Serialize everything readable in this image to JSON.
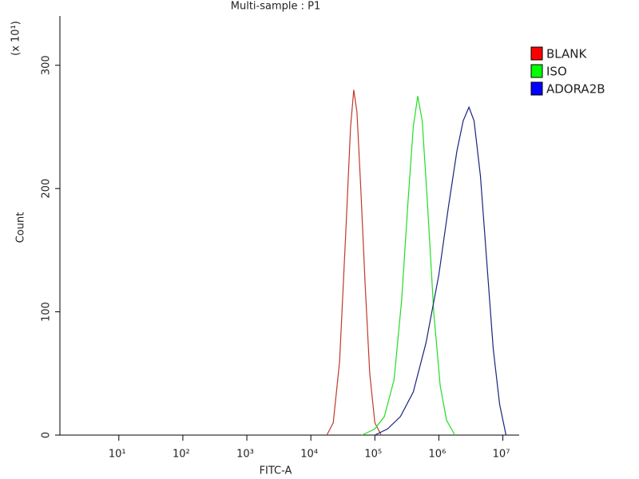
{
  "chart_data": {
    "type": "line",
    "title": "Multi-sample : P1",
    "x_label": "FITC-A",
    "y_label": "Count",
    "y_multiplier": "(x 10¹)",
    "xscale": "log",
    "xlim": [
      1.2,
      18000000
    ],
    "ylim": [
      0,
      340
    ],
    "xticks": [
      {
        "value": 10,
        "label": "10¹"
      },
      {
        "value": 100,
        "label": "10²"
      },
      {
        "value": 1000,
        "label": "10³"
      },
      {
        "value": 10000,
        "label": "10⁴"
      },
      {
        "value": 100000,
        "label": "10⁵"
      },
      {
        "value": 1000000,
        "label": "10⁶"
      },
      {
        "value": 10000000,
        "label": "10⁷"
      }
    ],
    "yticks": [
      0,
      100,
      200,
      300
    ],
    "legend": "right",
    "series": [
      {
        "name": "BLANK",
        "color": "#c0392b",
        "legend_color": "#ff0000",
        "x": [
          17800,
          22400,
          28200,
          35500,
          41700,
          46800,
          52500,
          60300,
          70800,
          83200,
          100000,
          126000
        ],
        "values": [
          0,
          10,
          60,
          170,
          250,
          280,
          262,
          200,
          120,
          50,
          10,
          0
        ]
      },
      {
        "name": "ISO",
        "color": "#22dd22",
        "legend_color": "#00ff00",
        "x": [
          63100,
          100000,
          141000,
          200000,
          263000,
          331000,
          398000,
          468000,
          550000,
          661000,
          832000,
          1050000,
          1320000,
          1780000
        ],
        "values": [
          0,
          5,
          15,
          45,
          110,
          190,
          250,
          275,
          255,
          190,
          100,
          40,
          12,
          0
        ]
      },
      {
        "name": "ADORA2B",
        "color": "#1a237e",
        "legend_color": "#0000ff",
        "x": [
          100000,
          158000,
          251000,
          398000,
          631000,
          1000000,
          1410000,
          1910000,
          2400000,
          2950000,
          3550000,
          4470000,
          5620000,
          7080000,
          8910000,
          11200000
        ],
        "values": [
          0,
          5,
          15,
          35,
          75,
          130,
          185,
          230,
          255,
          266,
          255,
          210,
          140,
          70,
          25,
          0
        ]
      }
    ]
  }
}
